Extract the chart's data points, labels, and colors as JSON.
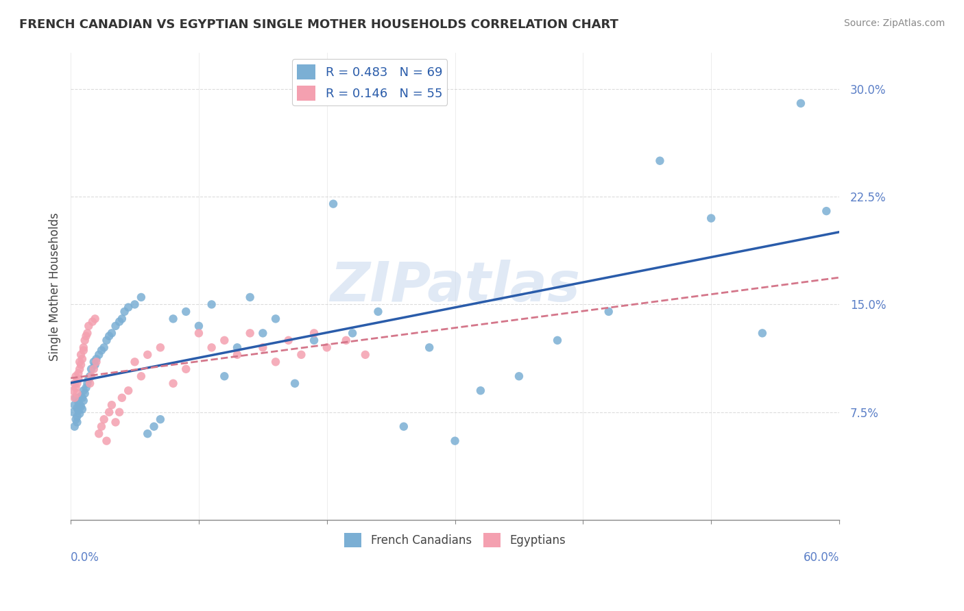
{
  "title": "FRENCH CANADIAN VS EGYPTIAN SINGLE MOTHER HOUSEHOLDS CORRELATION CHART",
  "source": "Source: ZipAtlas.com",
  "ylabel": "Single Mother Households",
  "xlim": [
    0.0,
    0.6
  ],
  "ylim": [
    0.0,
    0.325
  ],
  "yticks": [
    0.075,
    0.15,
    0.225,
    0.3
  ],
  "ytick_labels": [
    "7.5%",
    "15.0%",
    "22.5%",
    "30.0%"
  ],
  "xticks": [
    0.0,
    0.1,
    0.2,
    0.3,
    0.4,
    0.5,
    0.6
  ],
  "r_french": 0.483,
  "n_french": 69,
  "r_egyptian": 0.146,
  "n_egyptian": 55,
  "color_french": "#7bafd4",
  "color_egyptian": "#f4a0b0",
  "color_french_line": "#2a5caa",
  "color_egyptian_line": "#d4768a",
  "legend_label_french": "French Canadians",
  "legend_label_egyptian": "Egyptians",
  "french_x": [
    0.002,
    0.003,
    0.003,
    0.004,
    0.004,
    0.005,
    0.005,
    0.005,
    0.006,
    0.006,
    0.007,
    0.007,
    0.008,
    0.008,
    0.009,
    0.009,
    0.01,
    0.01,
    0.011,
    0.012,
    0.013,
    0.014,
    0.015,
    0.016,
    0.018,
    0.019,
    0.02,
    0.022,
    0.024,
    0.026,
    0.028,
    0.03,
    0.032,
    0.035,
    0.038,
    0.04,
    0.042,
    0.045,
    0.05,
    0.055,
    0.06,
    0.065,
    0.07,
    0.08,
    0.09,
    0.1,
    0.11,
    0.12,
    0.13,
    0.14,
    0.15,
    0.16,
    0.175,
    0.19,
    0.205,
    0.22,
    0.24,
    0.26,
    0.28,
    0.3,
    0.32,
    0.35,
    0.38,
    0.42,
    0.46,
    0.5,
    0.54,
    0.57,
    0.59
  ],
  "french_y": [
    0.075,
    0.08,
    0.065,
    0.085,
    0.07,
    0.078,
    0.072,
    0.068,
    0.082,
    0.076,
    0.08,
    0.074,
    0.086,
    0.079,
    0.085,
    0.077,
    0.09,
    0.083,
    0.088,
    0.092,
    0.095,
    0.098,
    0.1,
    0.105,
    0.11,
    0.108,
    0.112,
    0.115,
    0.118,
    0.12,
    0.125,
    0.128,
    0.13,
    0.135,
    0.138,
    0.14,
    0.145,
    0.148,
    0.15,
    0.155,
    0.06,
    0.065,
    0.07,
    0.14,
    0.145,
    0.135,
    0.15,
    0.1,
    0.12,
    0.155,
    0.13,
    0.14,
    0.095,
    0.125,
    0.22,
    0.13,
    0.145,
    0.065,
    0.12,
    0.055,
    0.09,
    0.1,
    0.125,
    0.145,
    0.25,
    0.21,
    0.13,
    0.29,
    0.215
  ],
  "egyptian_x": [
    0.002,
    0.003,
    0.003,
    0.004,
    0.004,
    0.005,
    0.005,
    0.006,
    0.006,
    0.007,
    0.007,
    0.008,
    0.008,
    0.009,
    0.01,
    0.01,
    0.011,
    0.012,
    0.013,
    0.014,
    0.015,
    0.016,
    0.017,
    0.018,
    0.019,
    0.02,
    0.022,
    0.024,
    0.026,
    0.028,
    0.03,
    0.032,
    0.035,
    0.038,
    0.04,
    0.045,
    0.05,
    0.055,
    0.06,
    0.07,
    0.08,
    0.09,
    0.1,
    0.11,
    0.12,
    0.13,
    0.14,
    0.15,
    0.16,
    0.17,
    0.18,
    0.19,
    0.2,
    0.215,
    0.23
  ],
  "egyptian_y": [
    0.09,
    0.085,
    0.095,
    0.1,
    0.092,
    0.088,
    0.095,
    0.102,
    0.098,
    0.105,
    0.11,
    0.108,
    0.115,
    0.112,
    0.118,
    0.12,
    0.125,
    0.128,
    0.13,
    0.135,
    0.095,
    0.1,
    0.138,
    0.105,
    0.14,
    0.11,
    0.06,
    0.065,
    0.07,
    0.055,
    0.075,
    0.08,
    0.068,
    0.075,
    0.085,
    0.09,
    0.11,
    0.1,
    0.115,
    0.12,
    0.095,
    0.105,
    0.13,
    0.12,
    0.125,
    0.115,
    0.13,
    0.12,
    0.11,
    0.125,
    0.115,
    0.13,
    0.12,
    0.125,
    0.115
  ]
}
